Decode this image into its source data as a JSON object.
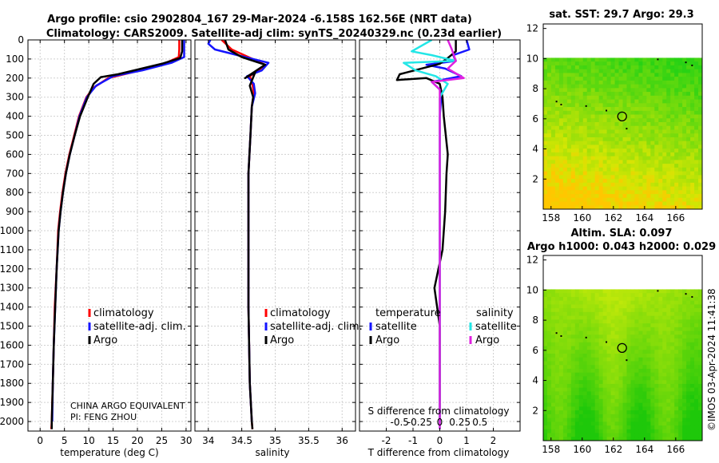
{
  "titles": {
    "line1": "Argo profile: csio 2902804_167 29-Mar-2024 -6.158S 162.56E (NRT data)",
    "line2": "Climatology: CARS2009. Satellite-adj clim: synTS_20240329.nc (0.23d earlier)"
  },
  "credit": "CHINA ARGO EQUIVALENT",
  "pi": "PI: FENG ZHOU",
  "timestamp": "©IMOS 03-Apr-2024 11:41:38",
  "colors": {
    "clim": "#ff0000",
    "sat": "#1515ff",
    "argo": "#000000",
    "sat_sal": "#22e6e6",
    "argo_sal": "#e020e0"
  },
  "chart_data": [
    {
      "type": "line",
      "title": "",
      "xlabel": "temperature (deg C)",
      "ylabel": "",
      "xlim": [
        -2.5,
        31
      ],
      "ylim": [
        2050,
        0
      ],
      "xticks": [
        0,
        5,
        10,
        15,
        20,
        25,
        30
      ],
      "yticks": [
        0,
        100,
        200,
        300,
        400,
        500,
        600,
        700,
        800,
        900,
        1000,
        1100,
        1200,
        1300,
        1400,
        1500,
        1600,
        1700,
        1800,
        1900,
        2000
      ],
      "legend": [
        "climatology",
        "satellite-adj. clim.",
        "Argo"
      ],
      "series": [
        {
          "name": "climatology",
          "color": "#ff0000",
          "points": [
            [
              28.6,
              0
            ],
            [
              28.6,
              50
            ],
            [
              28.5,
              90
            ],
            [
              25,
              130
            ],
            [
              19,
              170
            ],
            [
              14,
              200
            ],
            [
              11,
              250
            ],
            [
              9.5,
              300
            ],
            [
              8,
              400
            ],
            [
              7,
              500
            ],
            [
              6,
              600
            ],
            [
              5.2,
              700
            ],
            [
              4.6,
              800
            ],
            [
              4.1,
              900
            ],
            [
              3.7,
              1000
            ],
            [
              3.4,
              1200
            ],
            [
              3.0,
              1400
            ],
            [
              2.8,
              1600
            ],
            [
              2.6,
              1800
            ],
            [
              2.4,
              2000
            ],
            [
              2.3,
              2040
            ]
          ]
        },
        {
          "name": "satellite-adj. clim.",
          "color": "#1515ff",
          "points": [
            [
              29.6,
              0
            ],
            [
              29.6,
              50
            ],
            [
              29.6,
              90
            ],
            [
              27,
              120
            ],
            [
              21,
              160
            ],
            [
              15,
              190
            ],
            [
              11.5,
              240
            ],
            [
              9.6,
              300
            ],
            [
              8.1,
              400
            ],
            [
              7.1,
              500
            ],
            [
              6.1,
              600
            ],
            [
              5.3,
              700
            ],
            [
              4.7,
              800
            ],
            [
              4.2,
              900
            ],
            [
              3.8,
              1000
            ],
            [
              3.4,
              1200
            ],
            [
              3.1,
              1400
            ],
            [
              2.8,
              1600
            ],
            [
              2.6,
              1800
            ],
            [
              2.5,
              2000
            ]
          ]
        },
        {
          "name": "Argo",
          "color": "#000000",
          "points": [
            [
              29.2,
              0
            ],
            [
              29.2,
              60
            ],
            [
              28.8,
              95
            ],
            [
              25,
              125
            ],
            [
              16,
              180
            ],
            [
              12.5,
              195
            ],
            [
              11,
              230
            ],
            [
              9.8,
              300
            ],
            [
              8.2,
              400
            ],
            [
              7.1,
              500
            ],
            [
              6.1,
              600
            ],
            [
              5.3,
              700
            ],
            [
              4.7,
              800
            ],
            [
              4.2,
              900
            ],
            [
              3.8,
              1000
            ],
            [
              3.4,
              1200
            ],
            [
              3.1,
              1400
            ],
            [
              2.8,
              1600
            ],
            [
              2.6,
              1800
            ],
            [
              2.4,
              2000
            ],
            [
              2.4,
              2040
            ]
          ]
        }
      ]
    },
    {
      "type": "line",
      "xlabel": "salinity",
      "xlim": [
        33.8,
        36.2
      ],
      "ylim": [
        2050,
        0
      ],
      "xticks": [
        34,
        34.5,
        35,
        35.5,
        36
      ],
      "xticklabels": [
        "34",
        "34.5",
        "35",
        "35.5",
        "36"
      ],
      "legend": [
        "climatology",
        "satellite-adj. clim.",
        "Argo"
      ],
      "series": [
        {
          "name": "climatology",
          "color": "#ff0000",
          "points": [
            [
              34.2,
              0
            ],
            [
              34.35,
              50
            ],
            [
              34.6,
              90
            ],
            [
              34.85,
              130
            ],
            [
              34.75,
              160
            ],
            [
              34.62,
              190
            ],
            [
              34.66,
              230
            ],
            [
              34.68,
              280
            ],
            [
              34.65,
              350
            ],
            [
              34.63,
              500
            ],
            [
              34.6,
              700
            ],
            [
              34.6,
              1000
            ],
            [
              34.6,
              1400
            ],
            [
              34.62,
              1800
            ],
            [
              34.65,
              2000
            ],
            [
              34.66,
              2040
            ]
          ]
        },
        {
          "name": "satellite-adj. clim.",
          "color": "#1515ff",
          "points": [
            [
              34.03,
              0
            ],
            [
              34.0,
              20
            ],
            [
              34.1,
              50
            ],
            [
              34.55,
              90
            ],
            [
              34.9,
              120
            ],
            [
              34.8,
              160
            ],
            [
              34.58,
              190
            ],
            [
              34.68,
              230
            ],
            [
              34.7,
              280
            ],
            [
              34.65,
              350
            ],
            [
              34.63,
              500
            ],
            [
              34.6,
              700
            ],
            [
              34.6,
              1000
            ],
            [
              34.6,
              1400
            ],
            [
              34.62,
              1800
            ],
            [
              34.65,
              2000
            ]
          ]
        },
        {
          "name": "Argo",
          "color": "#000000",
          "points": [
            [
              34.25,
              0
            ],
            [
              34.3,
              50
            ],
            [
              34.5,
              90
            ],
            [
              34.85,
              130
            ],
            [
              34.55,
              200
            ],
            [
              34.7,
              170
            ],
            [
              34.62,
              240
            ],
            [
              34.67,
              300
            ],
            [
              34.65,
              350
            ],
            [
              34.63,
              500
            ],
            [
              34.6,
              700
            ],
            [
              34.6,
              1000
            ],
            [
              34.6,
              1400
            ],
            [
              34.62,
              1800
            ],
            [
              34.65,
              2000
            ],
            [
              34.66,
              2040
            ]
          ]
        }
      ]
    },
    {
      "type": "line",
      "xlabel": "T difference from climatology",
      "xlabel2": "S difference from climatology",
      "xlim": [
        -3,
        3
      ],
      "ylim": [
        2050,
        0
      ],
      "xticks": [
        -2,
        -1,
        0,
        1,
        2
      ],
      "xticklabels": [
        "-2",
        "-1",
        "0",
        "1",
        "2"
      ],
      "xticks2": [
        -0.5,
        -0.25,
        0,
        0.25,
        0.5
      ],
      "xticklabels2": [
        "-0.5",
        "-0.25",
        "0",
        "0.25",
        "0.5"
      ],
      "legend_groups": [
        {
          "heading": "temperature",
          "entries": [
            "satellite",
            "Argo"
          ]
        },
        {
          "heading": "salinity",
          "entries": [
            "satellite",
            "Argo"
          ]
        }
      ],
      "series": [
        {
          "name": "temperature satellite",
          "color": "#1515ff",
          "points": [
            [
              1.0,
              0
            ],
            [
              1.1,
              50
            ],
            [
              0.5,
              80
            ],
            [
              0.6,
              110
            ],
            [
              -0.5,
              130
            ],
            [
              0.2,
              150
            ],
            [
              0.8,
              190
            ],
            [
              -0.3,
              220
            ],
            [
              0,
              260
            ],
            [
              0.05,
              300
            ],
            [
              0,
              400
            ],
            [
              0,
              600
            ],
            [
              0,
              1000
            ],
            [
              0,
              1500
            ],
            [
              0,
              2000
            ]
          ]
        },
        {
          "name": "temperature Argo",
          "color": "#000000",
          "points": [
            [
              0.6,
              0
            ],
            [
              0.6,
              60
            ],
            [
              0.3,
              95
            ],
            [
              0,
              125
            ],
            [
              -1.5,
              180
            ],
            [
              -1.6,
              210
            ],
            [
              -0.5,
              200
            ],
            [
              0,
              230
            ],
            [
              0.1,
              300
            ],
            [
              0.15,
              400
            ],
            [
              0.3,
              600
            ],
            [
              0.25,
              700
            ],
            [
              0.2,
              900
            ],
            [
              0.1,
              1100
            ],
            [
              -0.2,
              1300
            ],
            [
              0,
              1500
            ],
            [
              0,
              2000
            ]
          ]
        },
        {
          "name": "salinity satellite",
          "color": "#22e6e6",
          "points": [
            [
              -0.1,
              0
            ],
            [
              -0.35,
              60
            ],
            [
              -0.1,
              80
            ],
            [
              0.2,
              110
            ],
            [
              -0.45,
              120
            ],
            [
              -0.3,
              160
            ],
            [
              -0.05,
              190
            ],
            [
              0.1,
              230
            ],
            [
              0,
              300
            ],
            [
              0,
              600
            ],
            [
              0,
              1000
            ],
            [
              0,
              1600
            ],
            [
              0,
              2000
            ],
            [
              0,
              2040
            ]
          ]
        },
        {
          "name": "salinity Argo",
          "color": "#e020e0",
          "points": [
            [
              0.1,
              0
            ],
            [
              0.15,
              50
            ],
            [
              0.2,
              110
            ],
            [
              0.1,
              150
            ],
            [
              0.3,
              200
            ],
            [
              -0.1,
              220
            ],
            [
              0,
              260
            ],
            [
              0,
              400
            ],
            [
              0,
              800
            ],
            [
              0,
              1500
            ],
            [
              0,
              2040
            ]
          ]
        }
      ]
    },
    {
      "type": "heatmap",
      "title": "sat. SST: 29.7 Argo: 29.3",
      "xlim": [
        157.5,
        167.7
      ],
      "ylim": [
        0,
        12.3
      ],
      "xticks": [
        158,
        160,
        162,
        164,
        166
      ],
      "yticks": [
        2,
        4,
        6,
        8,
        10,
        12
      ],
      "float_position": [
        162.56,
        6.158
      ]
    },
    {
      "type": "heatmap",
      "title1": "Altim. SLA: 0.097",
      "title2": "Argo h1000: 0.043 h2000: 0.029",
      "xlim": [
        157.5,
        167.7
      ],
      "ylim": [
        0,
        12.3
      ],
      "xticks": [
        158,
        160,
        162,
        164,
        166
      ],
      "yticks": [
        2,
        4,
        6,
        8,
        10,
        12
      ],
      "float_position": [
        162.56,
        6.158
      ]
    }
  ]
}
